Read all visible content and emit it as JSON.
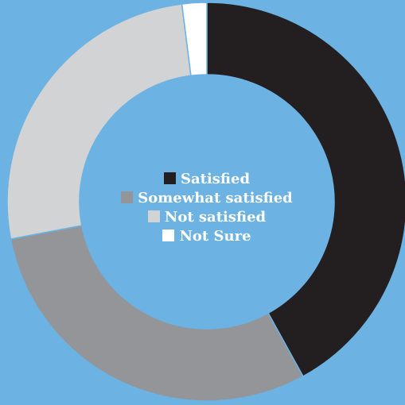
{
  "chart_data": {
    "type": "pie",
    "donut": true,
    "title": "",
    "categories": [
      "Satisfied",
      "Somewhat satisfied",
      "Not satisfied",
      "Not Sure"
    ],
    "values": [
      42,
      30,
      26,
      2
    ],
    "colors": [
      "#231f20",
      "#939598",
      "#d1d3d4",
      "#ffffff"
    ],
    "legend_position": "center"
  },
  "background_color": "#6cb2e2"
}
